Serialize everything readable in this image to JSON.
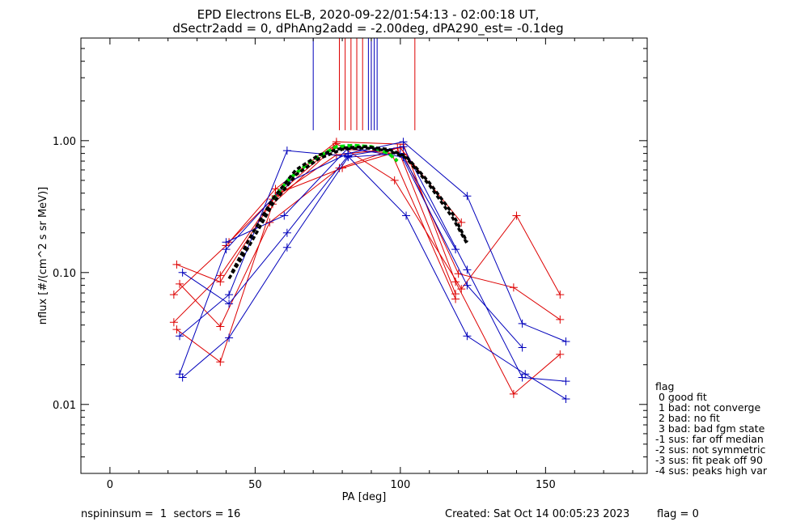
{
  "title_line1": "EPD Electrons EL-B, 2020-09-22/01:54:13 - 02:00:18 UT,",
  "title_line2": "dSectr2add = 0, dPhAng2add = -2.00deg, dPA290_est=  -0.1deg",
  "footer_left": "nspininsum =  1  sectors = 16",
  "footer_created": "Created: Sat Oct 14 00:05:23 2023",
  "footer_flag": "flag = 0",
  "legend": {
    "title": "flag",
    "items": [
      " 0 good fit",
      " 1 bad: not converge",
      " 2 bad: no fit",
      " 3 bad: bad fgm state",
      "-1 sus: far off median",
      "-2 sus: not symmetric",
      "-3 sus: fit peak off 90",
      "-4 sus: peaks high var"
    ]
  },
  "colors": {
    "red": "#dd0000",
    "blue": "#0000bb",
    "green": "#00dd00",
    "black": "#000000"
  },
  "chart_data": {
    "type": "line",
    "title": "EPD Electrons EL-B, 2020-09-22/01:54:13 - 02:00:18 UT, dSectr2add = 0, dPhAng2add = -2.00deg, dPA290_est=  -0.1deg",
    "xlabel": "PA [deg]",
    "ylabel": "nflux [#/(cm^2 s sr MeV)]",
    "xlim": [
      -10,
      185
    ],
    "ylim": [
      0.003,
      6.0
    ],
    "yscale": "log",
    "x_ticks": [
      0,
      50,
      100,
      150
    ],
    "y_ticks": [
      0.01,
      0.1,
      1.0
    ],
    "y_tick_labels": [
      "0.01",
      "0.10",
      "1.00"
    ],
    "grid": false,
    "sector_markers": {
      "blue": [
        70,
        89,
        90,
        91,
        92
      ],
      "red": [
        79,
        81,
        83,
        85,
        87,
        90,
        105
      ]
    },
    "red_series": [
      {
        "x": [
          22,
          40,
          57,
          78,
          101,
          119,
          139,
          155
        ],
        "y": [
          0.068,
          0.16,
          0.43,
          0.98,
          0.94,
          0.085,
          0.012,
          0.024
        ]
      },
      {
        "x": [
          23,
          38,
          57,
          78,
          98,
          121,
          140,
          155
        ],
        "y": [
          0.115,
          0.085,
          0.38,
          0.95,
          0.5,
          0.075,
          0.27,
          0.068
        ]
      },
      {
        "x": [
          24,
          38,
          55,
          79,
          99,
          119
        ],
        "y": [
          0.082,
          0.039,
          0.24,
          0.62,
          0.88,
          0.069
        ]
      },
      {
        "x": [
          23,
          38,
          56,
          77,
          101,
          120,
          139,
          155
        ],
        "y": [
          0.037,
          0.021,
          0.33,
          0.88,
          0.79,
          0.098,
          0.077,
          0.044
        ]
      },
      {
        "x": [
          22,
          38,
          56,
          78,
          100,
          121
        ],
        "y": [
          0.042,
          0.095,
          0.36,
          0.78,
          0.88,
          0.24
        ]
      },
      {
        "x": [
          41,
          58,
          80,
          97,
          119
        ],
        "y": [
          0.17,
          0.4,
          0.62,
          0.8,
          0.063
        ]
      }
    ],
    "blue_series": [
      {
        "x": [
          24,
          41,
          61,
          82,
          102,
          123,
          143,
          157
        ],
        "y": [
          0.033,
          0.068,
          0.84,
          0.76,
          0.27,
          0.033,
          0.017,
          0.011
        ]
      },
      {
        "x": [
          24,
          40,
          61,
          82,
          101,
          123,
          142,
          157
        ],
        "y": [
          0.017,
          0.15,
          0.48,
          0.8,
          0.98,
          0.38,
          0.041,
          0.03
        ]
      },
      {
        "x": [
          25,
          41,
          61,
          82,
          101,
          123,
          142,
          157
        ],
        "y": [
          0.1,
          0.058,
          0.2,
          0.77,
          0.9,
          0.105,
          0.016,
          0.015
        ]
      },
      {
        "x": [
          25,
          41,
          61,
          82,
          100,
          123,
          142
        ],
        "y": [
          0.016,
          0.032,
          0.155,
          0.75,
          0.8,
          0.08,
          0.027
        ]
      },
      {
        "x": [
          40,
          60,
          82,
          101,
          119
        ],
        "y": [
          0.17,
          0.27,
          0.88,
          0.75,
          0.15
        ]
      }
    ],
    "green_series": {
      "x": [
        56,
        62,
        70,
        78,
        84,
        90,
        96,
        99
      ],
      "y": [
        0.36,
        0.52,
        0.72,
        0.9,
        0.92,
        0.9,
        0.8,
        0.7
      ]
    },
    "black_series": [
      {
        "x": [
          41,
          48,
          56,
          64,
          72,
          80,
          88,
          96,
          102,
          110,
          118,
          123
        ],
        "y": [
          0.09,
          0.16,
          0.33,
          0.55,
          0.73,
          0.86,
          0.88,
          0.84,
          0.74,
          0.46,
          0.26,
          0.165
        ]
      },
      {
        "x": [
          42,
          48,
          56,
          64,
          72,
          80,
          88,
          96,
          102,
          110,
          118,
          123
        ],
        "y": [
          0.1,
          0.18,
          0.36,
          0.6,
          0.78,
          0.88,
          0.9,
          0.86,
          0.76,
          0.48,
          0.28,
          0.17
        ]
      }
    ]
  }
}
